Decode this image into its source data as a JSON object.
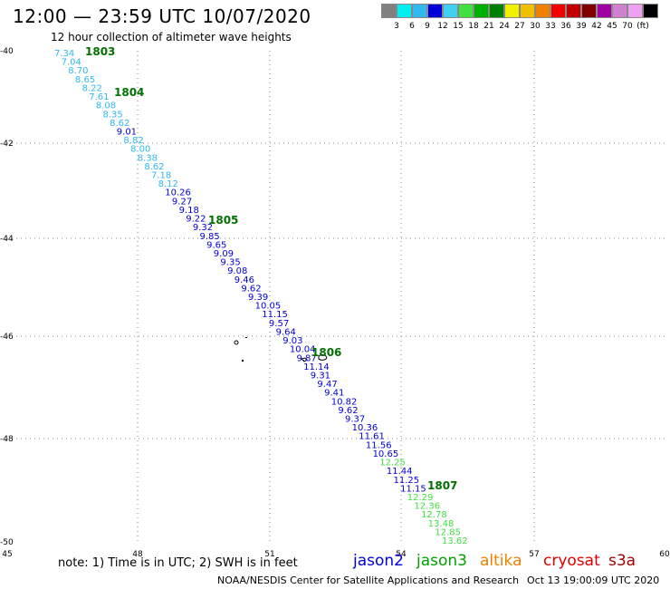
{
  "title": "12:00 — 23:59 UTC 10/07/2020",
  "subtitle": "12 hour collection of altimeter wave heights",
  "legend": {
    "colors": [
      "#808080",
      "#00f0f0",
      "#30b8f0",
      "#0000d8",
      "#40d0f0",
      "#40e040",
      "#00b000",
      "#008000",
      "#f0f000",
      "#f0c000",
      "#f08000",
      "#f00000",
      "#c00000",
      "#800000",
      "#a000a0",
      "#d080d0",
      "#f0a0f0",
      "#000000"
    ],
    "labels": [
      "3",
      "6",
      "9",
      "12",
      "15",
      "18",
      "21",
      "24",
      "27",
      "30",
      "33",
      "36",
      "39",
      "42",
      "45",
      "70",
      "(ft)"
    ]
  },
  "axes": {
    "x_ticks": [
      "45",
      "48",
      "51",
      "54",
      "57",
      "60"
    ],
    "y_ticks": [
      "-40",
      "-42",
      "-44",
      "-46",
      "-48",
      "-50"
    ]
  },
  "tracks": [
    {
      "time": "1803"
    },
    {
      "time": "1804"
    },
    {
      "time": "1805"
    },
    {
      "time": "1806"
    },
    {
      "time": "1807"
    }
  ],
  "points": [
    {
      "v": "7.34",
      "c": "#30b8f0"
    },
    {
      "v": "7.04",
      "c": "#30b8f0"
    },
    {
      "v": "8.70",
      "c": "#30b8f0"
    },
    {
      "v": "8.65",
      "c": "#30b8f0"
    },
    {
      "v": "8.22",
      "c": "#30b8f0"
    },
    {
      "v": "7.61",
      "c": "#30b8f0"
    },
    {
      "v": "8.08",
      "c": "#30b8f0"
    },
    {
      "v": "8.35",
      "c": "#30b8f0"
    },
    {
      "v": "8.62",
      "c": "#30b8f0"
    },
    {
      "v": "9.01",
      "c": "#0000d8"
    },
    {
      "v": "8.82",
      "c": "#30b8f0"
    },
    {
      "v": "8.00",
      "c": "#30b8f0"
    },
    {
      "v": "8.38",
      "c": "#30b8f0"
    },
    {
      "v": "8.62",
      "c": "#30b8f0"
    },
    {
      "v": "7.18",
      "c": "#30b8f0"
    },
    {
      "v": "8.12",
      "c": "#30b8f0"
    },
    {
      "v": "10.26",
      "c": "#0000d8"
    },
    {
      "v": "9.27",
      "c": "#0000d8"
    },
    {
      "v": "9.18",
      "c": "#0000d8"
    },
    {
      "v": "9.22",
      "c": "#0000d8"
    },
    {
      "v": "9.32",
      "c": "#0000d8"
    },
    {
      "v": "9.85",
      "c": "#0000d8"
    },
    {
      "v": "9.65",
      "c": "#0000d8"
    },
    {
      "v": "9.09",
      "c": "#0000d8"
    },
    {
      "v": "9.35",
      "c": "#0000d8"
    },
    {
      "v": "9.08",
      "c": "#0000d8"
    },
    {
      "v": "9.46",
      "c": "#0000d8"
    },
    {
      "v": "9.62",
      "c": "#0000d8"
    },
    {
      "v": "9.39",
      "c": "#0000d8"
    },
    {
      "v": "10.05",
      "c": "#0000d8"
    },
    {
      "v": "11.15",
      "c": "#0000d8"
    },
    {
      "v": "9.57",
      "c": "#0000d8"
    },
    {
      "v": "9.64",
      "c": "#0000d8"
    },
    {
      "v": "9.03",
      "c": "#0000d8"
    },
    {
      "v": "10.04",
      "c": "#0000d8"
    },
    {
      "v": "9.87",
      "c": "#0000d8"
    },
    {
      "v": "11.14",
      "c": "#0000d8"
    },
    {
      "v": "9.31",
      "c": "#0000d8"
    },
    {
      "v": "9.47",
      "c": "#0000d8"
    },
    {
      "v": "9.41",
      "c": "#0000d8"
    },
    {
      "v": "10.82",
      "c": "#0000d8"
    },
    {
      "v": "9.62",
      "c": "#0000d8"
    },
    {
      "v": "9.37",
      "c": "#0000d8"
    },
    {
      "v": "10.36",
      "c": "#0000d8"
    },
    {
      "v": "11.61",
      "c": "#0000d8"
    },
    {
      "v": "11.56",
      "c": "#0000d8"
    },
    {
      "v": "10.65",
      "c": "#0000d8"
    },
    {
      "v": "12.25",
      "c": "#40e040"
    },
    {
      "v": "11.44",
      "c": "#0000d8"
    },
    {
      "v": "11.25",
      "c": "#0000d8"
    },
    {
      "v": "11.15",
      "c": "#0000d8"
    },
    {
      "v": "12.29",
      "c": "#40e040"
    },
    {
      "v": "12.36",
      "c": "#40e040"
    },
    {
      "v": "12.78",
      "c": "#40e040"
    },
    {
      "v": "13.48",
      "c": "#40e040"
    },
    {
      "v": "12.85",
      "c": "#40e040"
    },
    {
      "v": "13.62",
      "c": "#40e040"
    }
  ],
  "note": "note:  1) Time is in UTC;  2) SWH is in feet",
  "satellites": [
    {
      "name": "jason2",
      "color": "#0000d8"
    },
    {
      "name": "jason3",
      "color": "#00a000"
    },
    {
      "name": "altika",
      "color": "#f08000"
    },
    {
      "name": "cryosat",
      "color": "#e00000"
    },
    {
      "name": "s3a",
      "color": "#a00000"
    }
  ],
  "footer": "NOAA/NESDIS Center for Satellite Applications and Research",
  "generated": "Oct 13 19:00:09 UTC 2020"
}
